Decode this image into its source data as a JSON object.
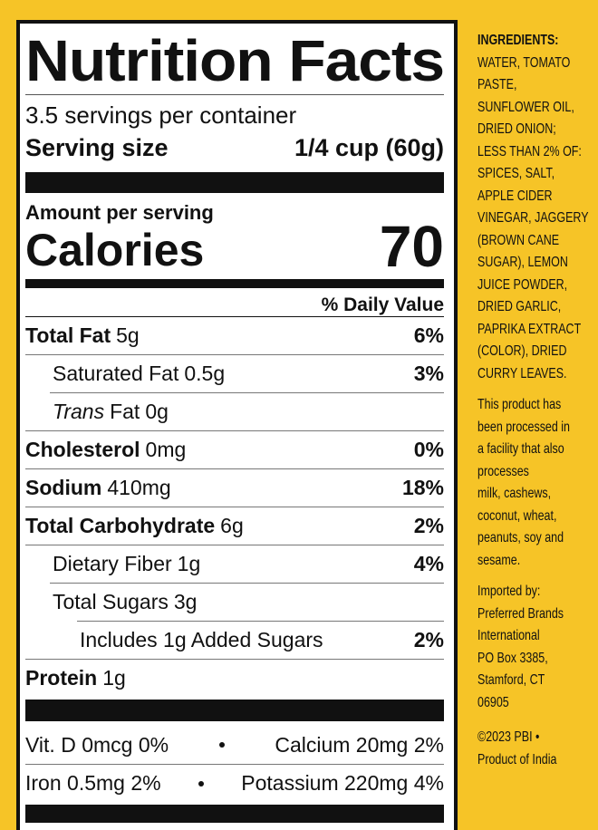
{
  "label": {
    "title": "Nutrition Facts",
    "servings": "3.5 servings per container",
    "serving_size_label": "Serving size",
    "serving_size_value": "1/4 cup (60g)",
    "amount_per_serving": "Amount per serving",
    "calories_label": "Calories",
    "calories_value": "70",
    "daily_value_header": "% Daily Value",
    "rows": [
      {
        "name": "Total Fat",
        "amount": "5g",
        "dv": "6%"
      },
      {
        "name": "Saturated Fat",
        "amount": "0.5g",
        "dv": "3%"
      },
      {
        "name_italic": "Trans",
        "name": "Fat",
        "amount": "0g"
      },
      {
        "name": "Cholesterol",
        "amount": "0mg",
        "dv": "0%"
      },
      {
        "name": "Sodium",
        "amount": "410mg",
        "dv": "18%"
      },
      {
        "name": "Total Carbohydrate",
        "amount": "6g",
        "dv": "2%"
      },
      {
        "name": "Dietary Fiber",
        "amount": "1g",
        "dv": "4%"
      },
      {
        "name": "Total Sugars",
        "amount": "3g"
      },
      {
        "name": "Includes 1g Added Sugars",
        "dv": "2%"
      },
      {
        "name": "Protein",
        "amount": "1g"
      }
    ],
    "vitamins": [
      {
        "left": "Vit. D 0mcg 0%",
        "right": "Calcium 20mg 2%"
      },
      {
        "left": "Iron 0.5mg 2%",
        "right": "Potassium 220mg 4%"
      }
    ]
  },
  "side_panel": {
    "ingredients_heading": "INGREDIENTS:",
    "ingredients_lines": [
      "WATER, TOMATO",
      "PASTE,",
      "SUNFLOWER OIL,",
      "DRIED ONION;",
      "LESS THAN 2% OF:",
      "SPICES, SALT,",
      "APPLE CIDER",
      "VINEGAR, JAGGERY",
      "(BROWN CANE",
      "SUGAR), LEMON",
      "JUICE POWDER,",
      "DRIED GARLIC,",
      "PAPRIKA EXTRACT",
      "(COLOR), DRIED",
      "CURRY LEAVES."
    ],
    "allergen_lines": [
      "This product has",
      "been processed in",
      "a facility that also",
      "processes",
      "milk, cashews,",
      "coconut, wheat,",
      "peanuts, soy and",
      "sesame."
    ],
    "importer_lines": [
      "Imported by:",
      "Preferred Brands",
      "International",
      "PO Box 3385,",
      "Stamford, CT",
      "06905"
    ],
    "footer_lines": [
      "©2023 PBI •",
      "Product of India"
    ]
  }
}
